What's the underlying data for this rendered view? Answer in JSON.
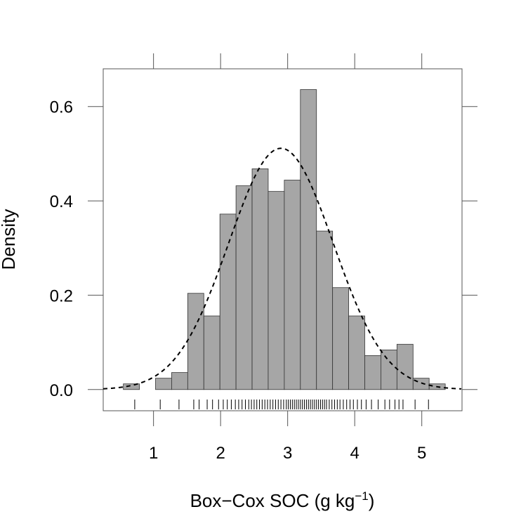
{
  "chart_data": {
    "type": "bar",
    "subtype": "histogram",
    "xlabel_main": "Box−Cox SOC (g kg",
    "xlabel_sup": "−1",
    "xlabel_tail": ")",
    "ylabel": "Density",
    "xlim": [
      0.25,
      5.6
    ],
    "ylim": [
      -0.045,
      0.68
    ],
    "x_ticks": [
      1,
      2,
      3,
      4,
      5
    ],
    "x_tick_labels": [
      "1",
      "2",
      "3",
      "4",
      "5"
    ],
    "y_ticks": [
      0.0,
      0.2,
      0.4,
      0.6
    ],
    "y_tick_labels": [
      "0.0",
      "0.2",
      "0.4",
      "0.6"
    ],
    "bin_width": 0.24,
    "bins": [
      {
        "start": 0.55,
        "density": 0.012
      },
      {
        "start": 0.79,
        "density": 0.0
      },
      {
        "start": 1.03,
        "density": 0.024
      },
      {
        "start": 1.27,
        "density": 0.036
      },
      {
        "start": 1.51,
        "density": 0.204
      },
      {
        "start": 1.75,
        "density": 0.156
      },
      {
        "start": 1.99,
        "density": 0.372
      },
      {
        "start": 2.23,
        "density": 0.432
      },
      {
        "start": 2.47,
        "density": 0.468
      },
      {
        "start": 2.71,
        "density": 0.42
      },
      {
        "start": 2.95,
        "density": 0.444
      },
      {
        "start": 3.19,
        "density": 0.636
      },
      {
        "start": 3.43,
        "density": 0.336
      },
      {
        "start": 3.67,
        "density": 0.216
      },
      {
        "start": 3.91,
        "density": 0.156
      },
      {
        "start": 4.15,
        "density": 0.072
      },
      {
        "start": 4.39,
        "density": 0.084
      },
      {
        "start": 4.63,
        "density": 0.096
      },
      {
        "start": 4.87,
        "density": 0.024
      },
      {
        "start": 5.11,
        "density": 0.012
      }
    ],
    "normal_curve": {
      "mean": 2.9,
      "sd": 0.78,
      "style": "dashed"
    },
    "rug": [
      0.72,
      1.1,
      1.38,
      1.6,
      1.68,
      1.8,
      1.88,
      1.97,
      2.04,
      2.1,
      2.16,
      2.22,
      2.27,
      2.32,
      2.37,
      2.42,
      2.46,
      2.5,
      2.54,
      2.58,
      2.62,
      2.66,
      2.7,
      2.74,
      2.78,
      2.82,
      2.86,
      2.9,
      2.94,
      2.98,
      3.01,
      3.04,
      3.07,
      3.1,
      3.13,
      3.16,
      3.19,
      3.22,
      3.25,
      3.28,
      3.31,
      3.34,
      3.37,
      3.4,
      3.43,
      3.46,
      3.49,
      3.52,
      3.55,
      3.58,
      3.62,
      3.66,
      3.7,
      3.74,
      3.78,
      3.83,
      3.88,
      3.93,
      3.98,
      4.04,
      4.1,
      4.17,
      4.25,
      4.35,
      4.45,
      4.52,
      4.6,
      4.66,
      4.72,
      4.9,
      5.1
    ],
    "grid": false,
    "legend": "none"
  }
}
